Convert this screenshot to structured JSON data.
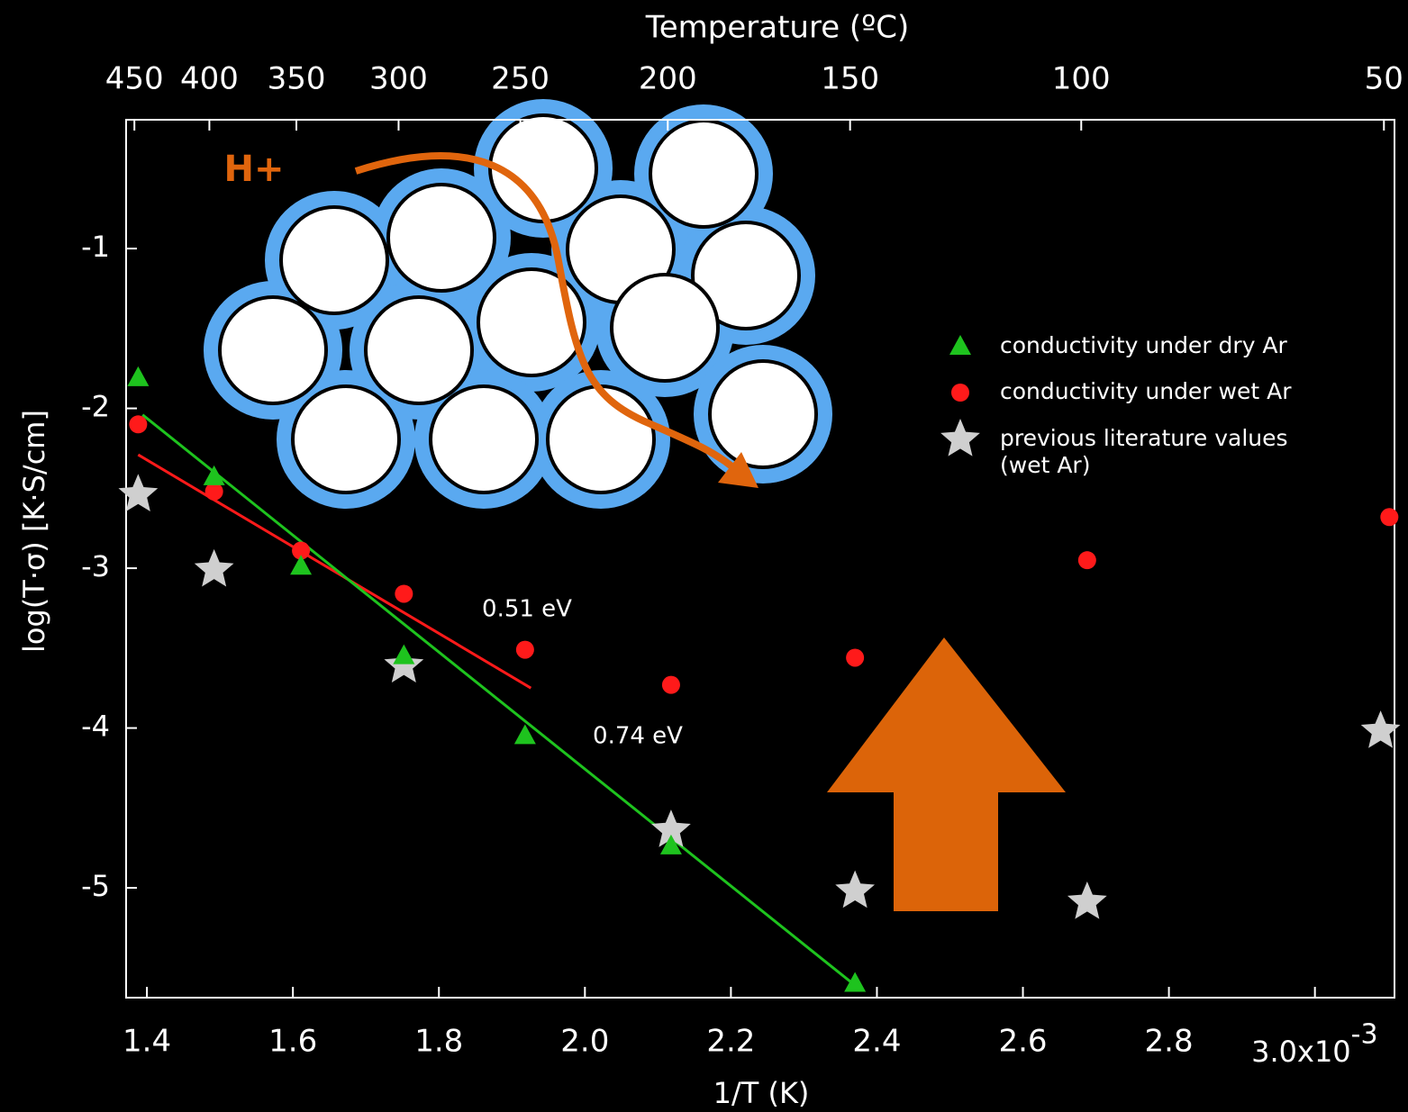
{
  "chart_data": {
    "type": "scatter",
    "xlabel": "1/T (K)",
    "ylabel": "log(T·σ) [K·S/cm]",
    "x2label": "Temperature (ºC)",
    "xlim": [
      1.3715,
      3.109
    ],
    "ylim": [
      -5.687,
      -0.194
    ],
    "xticks": [
      1.4,
      1.6,
      1.8,
      {
        "value": 2,
        "label": "2.0"
      },
      2.2,
      2.4,
      2.6,
      2.8,
      {
        "value": 3,
        "label": "3.0x10",
        "label_exponent": "-3"
      }
    ],
    "yticks": [
      -1,
      -2,
      -3,
      -4,
      -5
    ],
    "x2ticks": [
      450,
      400,
      350,
      300,
      250,
      200,
      150,
      100,
      50
    ],
    "series": [
      {
        "name": "conductivity under dry Ar",
        "color": "#1ec31e",
        "marker": "triangle",
        "x": [
          1.388,
          1.492,
          1.611,
          1.752,
          1.918,
          2.118,
          2.37
        ],
        "y": [
          -1.81,
          -2.43,
          -2.99,
          -3.55,
          -4.05,
          -4.74,
          -5.6
        ]
      },
      {
        "name": "conductivity under wet Ar",
        "color": "#ff1a1a",
        "marker": "circle",
        "x": [
          1.388,
          1.492,
          1.611,
          1.752,
          1.918,
          2.118,
          2.37,
          2.688,
          3.102
        ],
        "y": [
          -2.1,
          -2.52,
          -2.89,
          -3.16,
          -3.51,
          -3.73,
          -3.56,
          -2.95,
          -2.68
        ]
      },
      {
        "name": "previous literature values (wet Ar)",
        "color": "#cfcfcf",
        "marker": "star",
        "x": [
          1.388,
          1.492,
          1.752,
          2.118,
          2.37,
          2.688,
          3.09
        ],
        "y": [
          -2.54,
          -3.01,
          -3.61,
          -4.64,
          -5.02,
          -5.09,
          -4.02
        ]
      }
    ],
    "fits": [
      {
        "color": "#ff1a1a",
        "x": [
          1.388,
          1.926
        ],
        "y": [
          -2.29,
          -3.75
        ]
      },
      {
        "color": "#1ec31e",
        "x": [
          1.394,
          2.37
        ],
        "y": [
          -2.04,
          -5.61
        ]
      }
    ],
    "annotations": [
      "0.51 eV",
      "0.74 eV",
      "H+"
    ]
  }
}
